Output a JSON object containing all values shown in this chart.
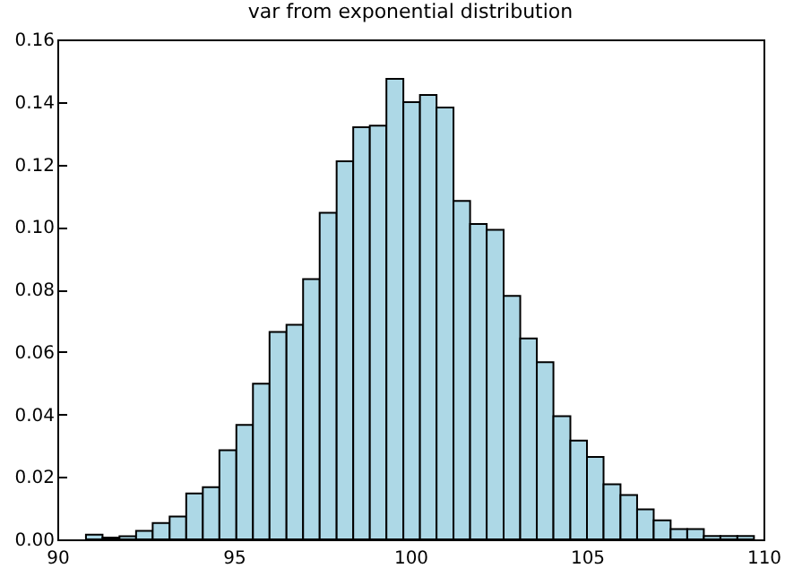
{
  "chart_data": {
    "type": "histogram",
    "title": "var from exponential distribution",
    "bins": [
      90.81,
      91.28,
      91.76,
      92.23,
      92.7,
      93.18,
      93.65,
      94.12,
      94.59,
      95.07,
      95.54,
      96.01,
      96.49,
      96.96,
      97.43,
      97.91,
      98.38,
      98.85,
      99.32,
      99.8,
      100.27,
      100.74,
      101.22,
      101.69,
      102.16,
      102.64,
      103.11,
      103.58,
      104.05,
      104.53,
      105.0,
      105.47,
      105.95,
      106.42,
      106.89,
      107.37,
      107.84,
      108.31,
      108.78,
      109.26,
      109.73
    ],
    "values": [
      0.0015,
      0.0006,
      0.001,
      0.0027,
      0.0052,
      0.0073,
      0.0147,
      0.0167,
      0.0285,
      0.0366,
      0.0498,
      0.0664,
      0.0687,
      0.0833,
      0.1045,
      0.121,
      0.1319,
      0.1324,
      0.1474,
      0.1399,
      0.1422,
      0.1382,
      0.1083,
      0.1009,
      0.0991,
      0.0779,
      0.0643,
      0.0567,
      0.0394,
      0.0316,
      0.0264,
      0.0176,
      0.0142,
      0.0096,
      0.0061,
      0.0033,
      0.0033,
      0.0011,
      0.0011,
      0.0011
    ],
    "color": "#add8e6",
    "xlim": [
      90,
      110
    ],
    "xticks": [
      90,
      95,
      100,
      105,
      110
    ],
    "ylim": [
      0,
      0.16
    ],
    "yticks": [
      {
        "value": 0,
        "label": "0.00"
      },
      {
        "value": 0.02,
        "label": "0.02"
      },
      {
        "value": 0.04,
        "label": "0.04"
      },
      {
        "value": 0.06,
        "label": "0.06"
      },
      {
        "value": 0.08,
        "label": "0.08"
      },
      {
        "value": 0.1,
        "label": "0.10"
      },
      {
        "value": 0.12,
        "label": "0.12"
      },
      {
        "value": 0.14,
        "label": "0.14"
      },
      {
        "value": 0.16,
        "label": "0.16"
      }
    ],
    "grid": false
  }
}
